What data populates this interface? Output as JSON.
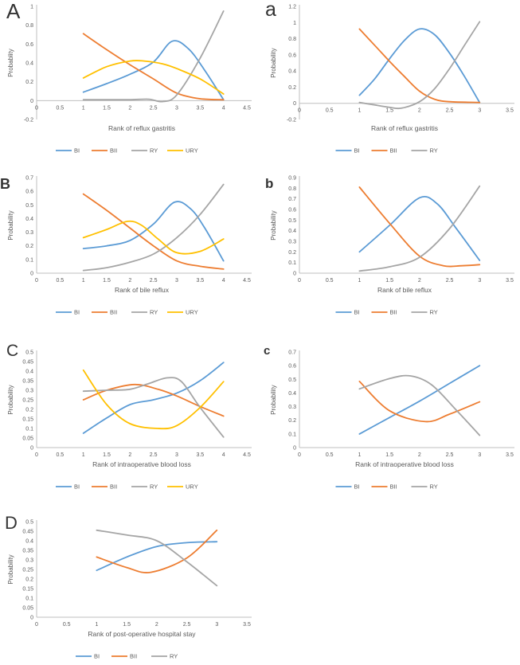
{
  "figure": {
    "background": "#ffffff",
    "text_color": "#595959",
    "axis_color": "#bfbfbf",
    "series_colors": {
      "BI": "#5B9BD5",
      "BII": "#ED7D31",
      "RY": "#A5A5A5",
      "URY": "#FFC000"
    }
  },
  "chart_data": [
    {
      "id": "A",
      "panel_label": "A",
      "type": "line",
      "xlabel": "Rank of reflux gastritis",
      "ylabel": "Probablity",
      "xlim": [
        0,
        4.5
      ],
      "xtick_step": 0.5,
      "ylim": [
        -0.2,
        1.0
      ],
      "ytick_step": 0.2,
      "grid": false,
      "legend_position": "bottom",
      "legend": [
        "BI",
        "BII",
        "RY",
        "URY"
      ],
      "series": [
        {
          "name": "BI",
          "color": "#5B9BD5",
          "points": [
            [
              1,
              0.09
            ],
            [
              1.5,
              0.18
            ],
            [
              2,
              0.28
            ],
            [
              2.5,
              0.41
            ],
            [
              2.9,
              0.63
            ],
            [
              3.25,
              0.55
            ],
            [
              3.6,
              0.32
            ],
            [
              4,
              0.01
            ]
          ]
        },
        {
          "name": "BII",
          "color": "#ED7D31",
          "points": [
            [
              1,
              0.71
            ],
            [
              1.5,
              0.54
            ],
            [
              2,
              0.38
            ],
            [
              2.5,
              0.23
            ],
            [
              3,
              0.08
            ],
            [
              3.5,
              0.02
            ],
            [
              4,
              0.01
            ]
          ]
        },
        {
          "name": "RY",
          "color": "#A5A5A5",
          "points": [
            [
              1,
              0.01
            ],
            [
              1.5,
              0.01
            ],
            [
              2,
              0.01
            ],
            [
              2.4,
              0.015
            ],
            [
              2.7,
              -0.01
            ],
            [
              3,
              0.06
            ],
            [
              3.5,
              0.45
            ],
            [
              4,
              0.95
            ]
          ]
        },
        {
          "name": "URY",
          "color": "#FFC000",
          "points": [
            [
              1,
              0.24
            ],
            [
              1.5,
              0.36
            ],
            [
              2,
              0.42
            ],
            [
              2.3,
              0.42
            ],
            [
              2.7,
              0.39
            ],
            [
              3,
              0.34
            ],
            [
              3.5,
              0.23
            ],
            [
              4,
              0.07
            ]
          ]
        }
      ]
    },
    {
      "id": "a",
      "panel_label": "a",
      "type": "line",
      "xlabel": "Rank of reflux gastritis",
      "ylabel": "Probability",
      "xlim": [
        0,
        3.5
      ],
      "xtick_step": 0.5,
      "ylim": [
        -0.2,
        1.2
      ],
      "ytick_step": 0.2,
      "grid": false,
      "legend_position": "bottom",
      "legend": [
        "BI",
        "BII",
        "RY"
      ],
      "series": [
        {
          "name": "BI",
          "color": "#5B9BD5",
          "points": [
            [
              1,
              0.1
            ],
            [
              1.25,
              0.3
            ],
            [
              1.5,
              0.55
            ],
            [
              1.75,
              0.78
            ],
            [
              2,
              0.92
            ],
            [
              2.25,
              0.85
            ],
            [
              2.5,
              0.62
            ],
            [
              2.75,
              0.33
            ],
            [
              3,
              0.01
            ]
          ]
        },
        {
          "name": "BII",
          "color": "#ED7D31",
          "points": [
            [
              1,
              0.92
            ],
            [
              1.25,
              0.72
            ],
            [
              1.5,
              0.52
            ],
            [
              1.75,
              0.33
            ],
            [
              2,
              0.15
            ],
            [
              2.25,
              0.05
            ],
            [
              2.5,
              0.02
            ],
            [
              3,
              0.01
            ]
          ]
        },
        {
          "name": "RY",
          "color": "#A5A5A5",
          "points": [
            [
              1,
              0.01
            ],
            [
              1.25,
              -0.02
            ],
            [
              1.5,
              -0.05
            ],
            [
              1.7,
              -0.06
            ],
            [
              2,
              0.02
            ],
            [
              2.25,
              0.18
            ],
            [
              2.5,
              0.43
            ],
            [
              2.75,
              0.72
            ],
            [
              3,
              1.01
            ]
          ]
        }
      ]
    },
    {
      "id": "B",
      "panel_label": "B",
      "type": "line",
      "xlabel": "Rank of bile reflux",
      "ylabel": "Probability",
      "xlim": [
        0,
        4.5
      ],
      "xtick_step": 0.5,
      "ylim": [
        0,
        0.7
      ],
      "ytick_step": 0.1,
      "grid": false,
      "legend_position": "bottom",
      "legend": [
        "BI",
        "BII",
        "RY",
        "URY"
      ],
      "series": [
        {
          "name": "BI",
          "color": "#5B9BD5",
          "points": [
            [
              1,
              0.18
            ],
            [
              1.5,
              0.2
            ],
            [
              2,
              0.24
            ],
            [
              2.5,
              0.36
            ],
            [
              2.95,
              0.52
            ],
            [
              3.3,
              0.47
            ],
            [
              3.6,
              0.33
            ],
            [
              4,
              0.09
            ]
          ]
        },
        {
          "name": "BII",
          "color": "#ED7D31",
          "points": [
            [
              1,
              0.58
            ],
            [
              1.5,
              0.46
            ],
            [
              2,
              0.33
            ],
            [
              2.5,
              0.2
            ],
            [
              3,
              0.09
            ],
            [
              3.5,
              0.05
            ],
            [
              4,
              0.03
            ]
          ]
        },
        {
          "name": "RY",
          "color": "#A5A5A5",
          "points": [
            [
              1,
              0.02
            ],
            [
              1.5,
              0.04
            ],
            [
              2,
              0.08
            ],
            [
              2.5,
              0.14
            ],
            [
              3,
              0.26
            ],
            [
              3.5,
              0.43
            ],
            [
              4,
              0.65
            ]
          ]
        },
        {
          "name": "URY",
          "color": "#FFC000",
          "points": [
            [
              1,
              0.26
            ],
            [
              1.5,
              0.32
            ],
            [
              1.95,
              0.38
            ],
            [
              2.25,
              0.35
            ],
            [
              2.6,
              0.25
            ],
            [
              3,
              0.15
            ],
            [
              3.5,
              0.16
            ],
            [
              4,
              0.25
            ]
          ]
        }
      ]
    },
    {
      "id": "b",
      "panel_label": "b",
      "type": "line",
      "xlabel": "Rank of bile reflux",
      "ylabel": "Probability",
      "xlim": [
        0,
        3.5
      ],
      "xtick_step": 0.5,
      "ylim": [
        0,
        0.9
      ],
      "ytick_step": 0.1,
      "grid": false,
      "legend_position": "bottom",
      "legend": [
        "BI",
        "BII",
        "RY"
      ],
      "series": [
        {
          "name": "BI",
          "color": "#5B9BD5",
          "points": [
            [
              1,
              0.2
            ],
            [
              1.5,
              0.45
            ],
            [
              2,
              0.71
            ],
            [
              2.3,
              0.65
            ],
            [
              2.6,
              0.43
            ],
            [
              3,
              0.12
            ]
          ]
        },
        {
          "name": "BII",
          "color": "#ED7D31",
          "points": [
            [
              1,
              0.81
            ],
            [
              1.5,
              0.47
            ],
            [
              2,
              0.16
            ],
            [
              2.4,
              0.07
            ],
            [
              2.7,
              0.07
            ],
            [
              3,
              0.08
            ]
          ]
        },
        {
          "name": "RY",
          "color": "#A5A5A5",
          "points": [
            [
              1,
              0.02
            ],
            [
              1.5,
              0.06
            ],
            [
              2,
              0.15
            ],
            [
              2.5,
              0.42
            ],
            [
              3,
              0.82
            ]
          ]
        }
      ]
    },
    {
      "id": "C",
      "panel_label": "C",
      "type": "line",
      "xlabel": "Rank of intraoperative blood loss",
      "ylabel": "Probability",
      "xlim": [
        0,
        4.5
      ],
      "xtick_step": 0.5,
      "ylim": [
        0,
        0.5
      ],
      "ytick_step": 0.05,
      "grid": false,
      "legend_position": "bottom",
      "legend": [
        "BI",
        "BII",
        "RY",
        "URY"
      ],
      "series": [
        {
          "name": "BI",
          "color": "#5B9BD5",
          "points": [
            [
              1,
              0.075
            ],
            [
              1.5,
              0.155
            ],
            [
              2,
              0.225
            ],
            [
              2.5,
              0.25
            ],
            [
              3,
              0.285
            ],
            [
              3.5,
              0.35
            ],
            [
              4,
              0.445
            ]
          ]
        },
        {
          "name": "BII",
          "color": "#ED7D31",
          "points": [
            [
              1,
              0.25
            ],
            [
              1.5,
              0.3
            ],
            [
              2.1,
              0.33
            ],
            [
              2.6,
              0.305
            ],
            [
              3,
              0.27
            ],
            [
              3.5,
              0.215
            ],
            [
              4,
              0.165
            ]
          ]
        },
        {
          "name": "RY",
          "color": "#A5A5A5",
          "points": [
            [
              1,
              0.295
            ],
            [
              1.5,
              0.3
            ],
            [
              2,
              0.305
            ],
            [
              2.4,
              0.335
            ],
            [
              2.8,
              0.365
            ],
            [
              3.1,
              0.345
            ],
            [
              3.5,
              0.21
            ],
            [
              4,
              0.055
            ]
          ]
        },
        {
          "name": "URY",
          "color": "#FFC000",
          "points": [
            [
              1,
              0.405
            ],
            [
              1.5,
              0.225
            ],
            [
              2,
              0.125
            ],
            [
              2.6,
              0.1
            ],
            [
              3,
              0.115
            ],
            [
              3.5,
              0.21
            ],
            [
              4,
              0.345
            ]
          ]
        }
      ]
    },
    {
      "id": "c",
      "panel_label": "c",
      "type": "line",
      "xlabel": "Rank of intraoperative blood loss",
      "ylabel": "Probability",
      "xlim": [
        0,
        3.5
      ],
      "xtick_step": 0.5,
      "ylim": [
        0,
        0.7
      ],
      "ytick_step": 0.1,
      "grid": false,
      "legend_position": "bottom",
      "legend": [
        "BI",
        "BII",
        "RY"
      ],
      "series": [
        {
          "name": "BI",
          "color": "#5B9BD5",
          "points": [
            [
              1,
              0.1
            ],
            [
              1.5,
              0.22
            ],
            [
              2,
              0.34
            ],
            [
              2.5,
              0.47
            ],
            [
              3,
              0.6
            ]
          ]
        },
        {
          "name": "BII",
          "color": "#ED7D31",
          "points": [
            [
              1,
              0.485
            ],
            [
              1.5,
              0.27
            ],
            [
              2.1,
              0.19
            ],
            [
              2.5,
              0.245
            ],
            [
              3,
              0.335
            ]
          ]
        },
        {
          "name": "RY",
          "color": "#A5A5A5",
          "points": [
            [
              1,
              0.43
            ],
            [
              1.5,
              0.505
            ],
            [
              1.85,
              0.525
            ],
            [
              2.2,
              0.46
            ],
            [
              2.6,
              0.28
            ],
            [
              3,
              0.09
            ]
          ]
        }
      ]
    },
    {
      "id": "D",
      "panel_label": "D",
      "type": "line",
      "xlabel": "Rank of post-operative hospital stay",
      "ylabel": "Probability",
      "xlim": [
        0,
        3.5
      ],
      "xtick_step": 0.5,
      "ylim": [
        0,
        0.5
      ],
      "ytick_step": 0.05,
      "grid": false,
      "legend_position": "bottom",
      "legend": [
        "BI",
        "BII",
        "RY"
      ],
      "series": [
        {
          "name": "BI",
          "color": "#5B9BD5",
          "points": [
            [
              1,
              0.245
            ],
            [
              1.5,
              0.315
            ],
            [
              2,
              0.37
            ],
            [
              2.5,
              0.39
            ],
            [
              3,
              0.395
            ]
          ]
        },
        {
          "name": "BII",
          "color": "#ED7D31",
          "points": [
            [
              1,
              0.315
            ],
            [
              1.5,
              0.26
            ],
            [
              1.9,
              0.235
            ],
            [
              2.5,
              0.31
            ],
            [
              3,
              0.455
            ]
          ]
        },
        {
          "name": "RY",
          "color": "#A5A5A5",
          "points": [
            [
              1,
              0.455
            ],
            [
              1.5,
              0.43
            ],
            [
              2,
              0.4
            ],
            [
              2.5,
              0.29
            ],
            [
              3,
              0.165
            ]
          ]
        }
      ]
    }
  ]
}
